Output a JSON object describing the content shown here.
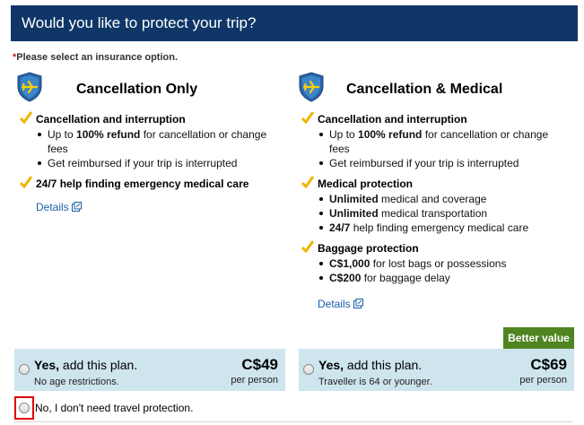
{
  "header": {
    "title": "Would you like to protect your trip?"
  },
  "required_note": {
    "star": "*",
    "text": "Please select an insurance option."
  },
  "plans": [
    {
      "title": "Cancellation Only",
      "icon": "shield-plane-icon",
      "features": [
        {
          "title": "Cancellation and interruption",
          "bullets": [
            {
              "pre": "Up to ",
              "bold": "100% refund",
              "post": " for cancellation or change fees"
            },
            {
              "pre": "Get reimbursed if your trip is interrupted",
              "bold": "",
              "post": ""
            }
          ]
        },
        {
          "title": "24/7 help finding emergency medical care",
          "bullets": []
        }
      ],
      "details_label": "Details",
      "option": {
        "yes_bold": "Yes,",
        "yes_rest": " add this plan.",
        "sub": "No age restrictions.",
        "price": "C$49",
        "per": "per person"
      }
    },
    {
      "title": "Cancellation & Medical",
      "icon": "shield-plane-icon",
      "features": [
        {
          "title": "Cancellation and interruption",
          "bullets": [
            {
              "pre": "Up to ",
              "bold": "100% refund",
              "post": " for cancellation or change fees"
            },
            {
              "pre": "Get reimbursed if your trip is interrupted",
              "bold": "",
              "post": ""
            }
          ]
        },
        {
          "title": "Medical protection",
          "bullets": [
            {
              "pre": "",
              "bold": "Unlimited",
              "post": " medical and coverage"
            },
            {
              "pre": "",
              "bold": "Unlimited",
              "post": " medical transportation"
            },
            {
              "pre": "",
              "bold": "24/7",
              "post": " help finding emergency medical care"
            }
          ]
        },
        {
          "title": "Baggage protection",
          "bullets": [
            {
              "pre": "",
              "bold": "C$1,000",
              "post": " for lost bags or possessions"
            },
            {
              "pre": "",
              "bold": "C$200",
              "post": " for baggage delay"
            }
          ]
        }
      ],
      "details_label": "Details",
      "badge": "Better value",
      "option": {
        "yes_bold": "Yes,",
        "yes_rest": " add this plan.",
        "sub": "Traveller is 64 or younger.",
        "price": "C$69",
        "per": "per person"
      }
    }
  ],
  "decline": {
    "label": "No, I don't need travel protection."
  },
  "colors": {
    "header_bg": "#0f3667",
    "badge_bg": "#4f8521",
    "option_bg": "#cee5ee",
    "check": "#f0b400",
    "link": "#1a5fa8",
    "highlight": "#e00000"
  }
}
